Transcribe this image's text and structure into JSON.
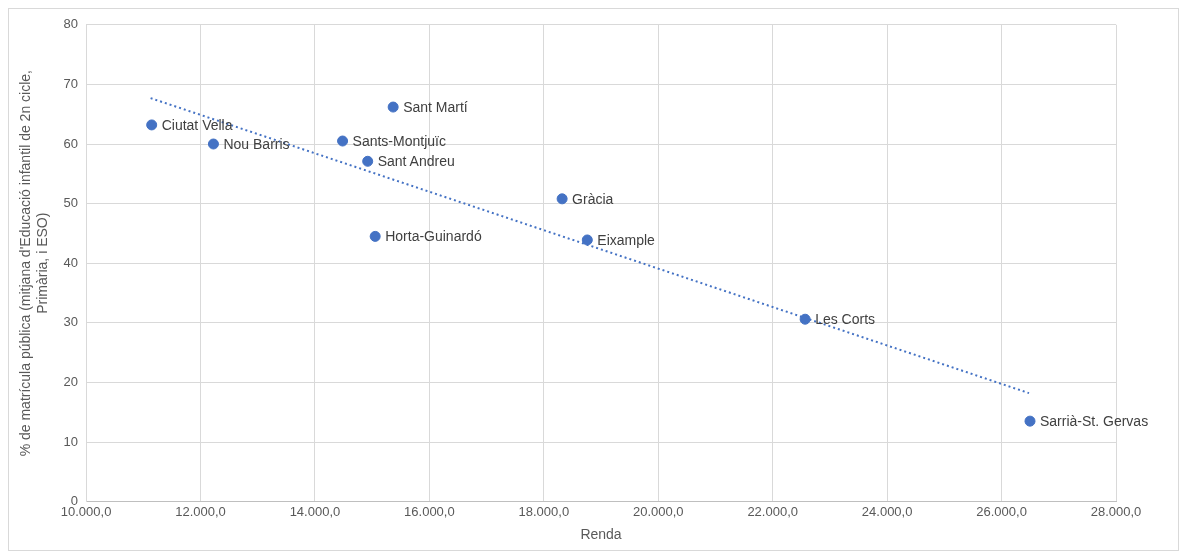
{
  "chart_data": {
    "type": "scatter",
    "xlabel": "Renda",
    "ylabel": "% de matrícula pública (mitjana d'Educació infantil de 2n cicle, Primària, i ESO)",
    "series": [
      {
        "color": "#4472c4",
        "x": [
          11147,
          12226,
          14483,
          14922,
          15367,
          15053,
          18320,
          18760,
          22567,
          26497
        ],
        "values": [
          63.2,
          60.0,
          60.5,
          57.1,
          66.2,
          44.5,
          50.8,
          43.9,
          30.6,
          13.5
        ],
        "value_labels": [
          "Ciutat Vella",
          "Nou Barris",
          "Sants-Montjuïc",
          "Sant Andreu",
          "Sant Martí",
          "Horta-Guinardó",
          "Gràcia",
          "Eixample",
          "Les Corts",
          "Sarrià-St. Gervas"
        ],
        "marker": "circle"
      },
      {
        "type": "line",
        "color": "#4472c4",
        "x": [
          11128,
          26480
        ],
        "values": [
          67.7,
          18.2
        ],
        "line_style": "dotted",
        "marker": "none"
      }
    ],
    "xlim": [
      10000,
      28000
    ],
    "xticks": [
      {
        "value": 10000,
        "label": "10.000,0"
      },
      {
        "value": 12000,
        "label": "12.000,0"
      },
      {
        "value": 14000,
        "label": "14.000,0"
      },
      {
        "value": 16000,
        "label": "16.000,0"
      },
      {
        "value": 18000,
        "label": "18.000,0"
      },
      {
        "value": 20000,
        "label": "20.000,0"
      },
      {
        "value": 22000,
        "label": "22.000,0"
      },
      {
        "value": 24000,
        "label": "24.000,0"
      },
      {
        "value": 26000,
        "label": "26.000,0"
      },
      {
        "value": 28000,
        "label": "28.000,0"
      }
    ],
    "ylim": [
      0,
      80
    ],
    "yticks": [
      0,
      10,
      20,
      30,
      40,
      50,
      60,
      70,
      80
    ],
    "grid": true,
    "legend": false
  }
}
